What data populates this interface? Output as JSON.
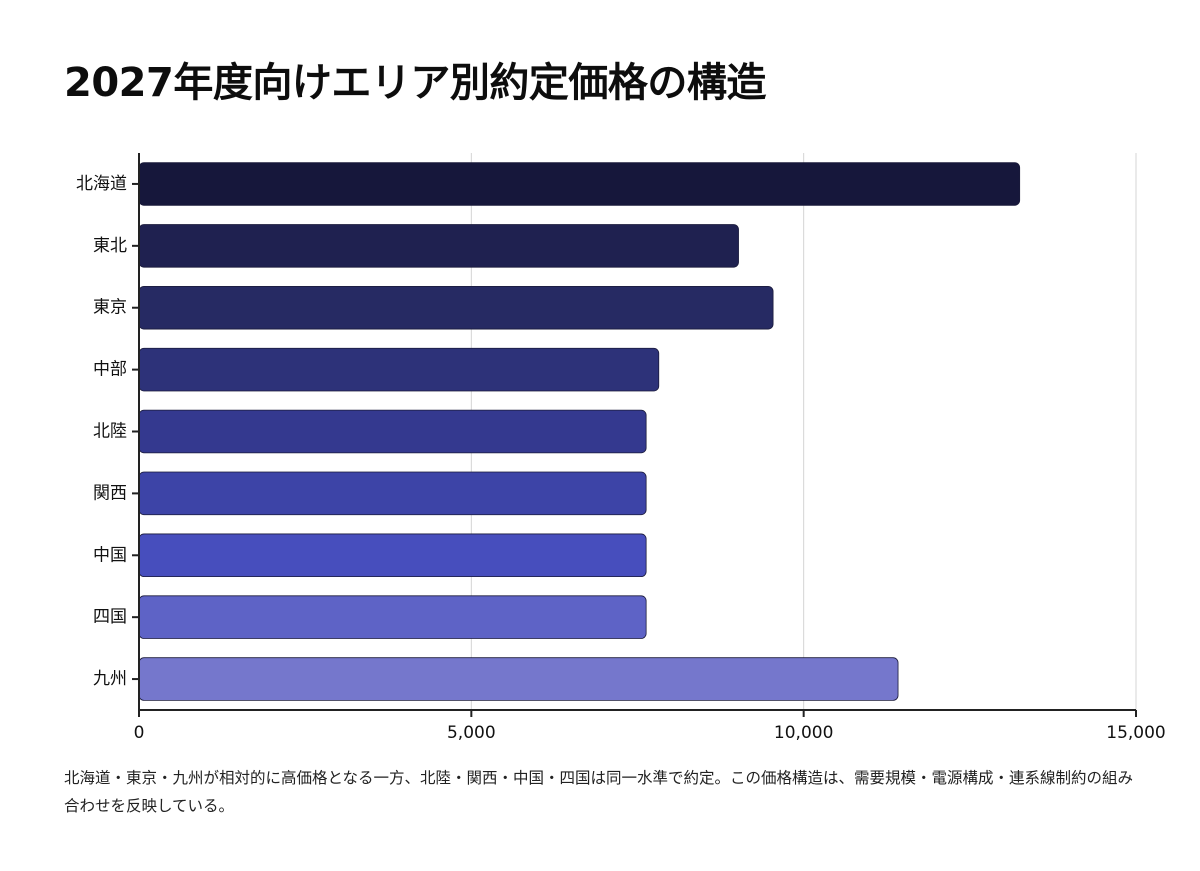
{
  "chart_data": {
    "type": "bar",
    "orientation": "horizontal",
    "title": "2027年度向けエリア別約定価格の構造",
    "categories": [
      "北海道",
      "東北",
      "東京",
      "中部",
      "北陸",
      "関西",
      "中国",
      "四国",
      "九州"
    ],
    "values": [
      13250,
      9020,
      9540,
      7820,
      7630,
      7630,
      7630,
      7630,
      11420
    ],
    "xlim": [
      0,
      15000
    ],
    "xticks": [
      0,
      5000,
      10000,
      15000
    ],
    "xtick_labels": [
      "0",
      "5,000",
      "10,000",
      "15,000"
    ],
    "grid": "vertical",
    "legend": "none",
    "colors": [
      "#16173b",
      "#1f2150",
      "#262a63",
      "#2d3279",
      "#34398f",
      "#3d44a7",
      "#474ebd",
      "#5e63c6",
      "#7577cc"
    ]
  },
  "caption": "北海道・東京・九州が相対的に高価格となる一方、北陸・関西・中国・四国は同一水準で約定。この価格構造は、需要規模・電源構成・連系線制約の組み合わせを反映している。"
}
